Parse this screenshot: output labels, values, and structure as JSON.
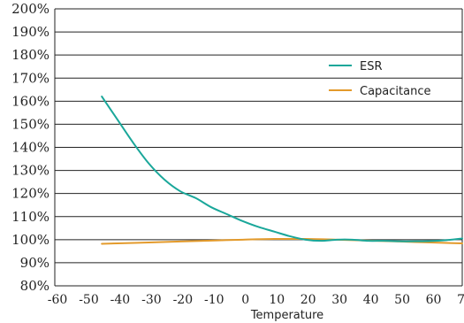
{
  "chart_data": {
    "type": "line",
    "title": "",
    "xlabel": "Temperature",
    "ylabel": "",
    "x_ticks": [
      -60,
      -50,
      -40,
      -30,
      -20,
      -10,
      0,
      10,
      20,
      30,
      40,
      50,
      60,
      70
    ],
    "y_ticks": [
      "80%",
      "90%",
      "100%",
      "110%",
      "120%",
      "130%",
      "140%",
      "150%",
      "160%",
      "170%",
      "180%",
      "190%",
      "200%"
    ],
    "xlim": [
      -60,
      70
    ],
    "ylim": [
      80,
      200
    ],
    "grid": "horizontal",
    "legend_position": "top-right",
    "series": [
      {
        "name": "ESR",
        "color": "#1aa79a",
        "x": [
          -45,
          -40,
          -35,
          -30,
          -25,
          -20,
          -15,
          -10,
          -5,
          0,
          5,
          10,
          15,
          20,
          25,
          30,
          35,
          40,
          45,
          50,
          55,
          60,
          65,
          70
        ],
        "y": [
          162,
          152,
          142,
          133,
          126,
          121,
          118,
          114,
          111,
          108,
          105.5,
          103.5,
          101.5,
          100,
          99.5,
          100,
          100,
          99.5,
          99.5,
          99.3,
          99.3,
          99.4,
          99.8,
          100.5
        ]
      },
      {
        "name": "Capacitance",
        "color": "#e39a2b",
        "x": [
          -45,
          -40,
          -30,
          -20,
          -10,
          0,
          10,
          20,
          30,
          40,
          50,
          60,
          70
        ],
        "y": [
          98.2,
          98.4,
          98.8,
          99.2,
          99.6,
          100,
          100.3,
          100.3,
          100,
          99.6,
          99.2,
          98.8,
          98.4
        ]
      }
    ]
  }
}
